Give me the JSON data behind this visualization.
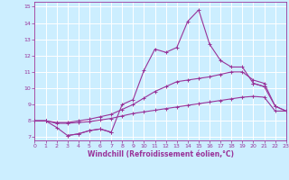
{
  "x": [
    0,
    1,
    2,
    3,
    4,
    5,
    6,
    7,
    8,
    9,
    10,
    11,
    12,
    13,
    14,
    15,
    16,
    17,
    18,
    19,
    20,
    21,
    22,
    23
  ],
  "line1": [
    8.0,
    8.0,
    7.6,
    7.1,
    7.2,
    7.4,
    7.5,
    7.3,
    9.0,
    9.3,
    11.1,
    12.4,
    12.2,
    12.5,
    14.1,
    14.8,
    12.7,
    11.7,
    11.3,
    11.3,
    10.3,
    10.1,
    null,
    null
  ],
  "line2": [
    8.0,
    8.0,
    null,
    7.1,
    7.2,
    7.4,
    7.5,
    7.3,
    null,
    null,
    null,
    null,
    null,
    null,
    null,
    null,
    null,
    null,
    null,
    null,
    10.3,
    10.1,
    8.9,
    8.6
  ],
  "line3": [
    8.0,
    8.0,
    7.9,
    7.9,
    8.0,
    8.1,
    8.25,
    8.4,
    8.7,
    9.0,
    9.4,
    9.8,
    10.1,
    10.4,
    10.5,
    10.6,
    10.7,
    10.85,
    11.0,
    11.0,
    10.5,
    10.3,
    8.9,
    8.6
  ],
  "line4": [
    8.0,
    8.0,
    7.85,
    7.85,
    7.9,
    7.95,
    8.05,
    8.15,
    8.3,
    8.45,
    8.55,
    8.65,
    8.75,
    8.85,
    8.95,
    9.05,
    9.15,
    9.25,
    9.35,
    9.45,
    9.5,
    9.45,
    8.6,
    8.6
  ],
  "color": "#993399",
  "bg_color": "#cceeff",
  "grid_color": "#ffffff",
  "xlabel": "Windchill (Refroidissement éolien,°C)",
  "ylabel_min": 7,
  "ylabel_max": 15,
  "xlim": [
    0,
    23
  ],
  "ylim": [
    6.8,
    15.3
  ],
  "figw": 3.2,
  "figh": 2.0,
  "dpi": 100
}
